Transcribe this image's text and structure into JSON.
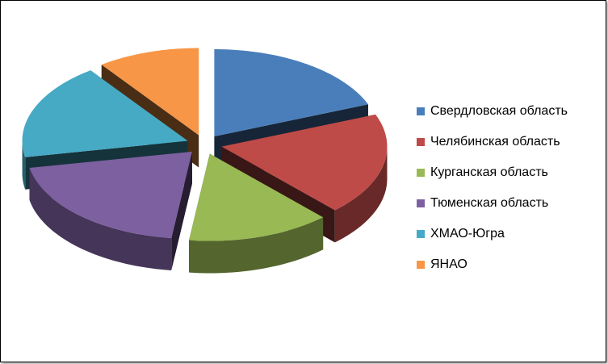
{
  "chart_data": {
    "type": "pie",
    "title": "",
    "legend_position": "right",
    "style": "3d-exploded",
    "series": [
      {
        "categories": [
          "Свердловская область",
          "Челябинская область",
          "Курганская область",
          "Тюменская область",
          "ХМАО-Югра",
          "ЯНАО"
        ],
        "values": [
          19,
          19,
          14,
          20,
          18,
          10
        ],
        "colors": [
          "#4A7EBB",
          "#BE4B48",
          "#98B954",
          "#7D60A0",
          "#46AAC5",
          "#F79646"
        ]
      }
    ]
  }
}
